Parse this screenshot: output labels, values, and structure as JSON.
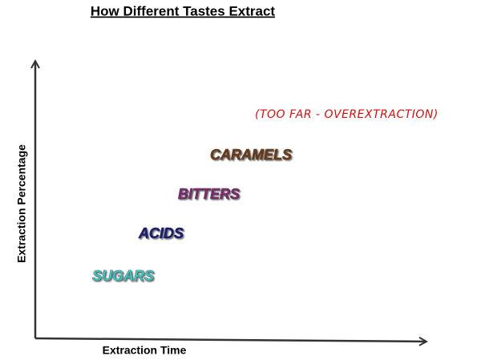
{
  "title": "How Different Tastes Extract",
  "y_axis_label": "Extraction Percentage",
  "x_axis_label": "Extraction Time",
  "tastes": [
    "SUGARS",
    "ACIDS",
    "BITTERS",
    "CARAMELS"
  ],
  "note": "(TOO FAR - OVEREXTRACTION)"
}
